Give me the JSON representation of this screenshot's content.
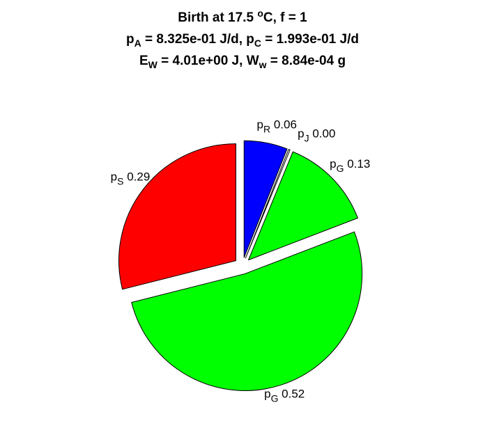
{
  "title": {
    "line1": {
      "pre": "Birth at 17.5 ",
      "sup": "o",
      "post": "C, f = 1"
    },
    "line2": {
      "a_sym": "p",
      "a_sub": "A",
      "a_val": " = 8.325e-01 J/d, ",
      "c_sym": "p",
      "c_sub": "C",
      "c_val": " = 1.993e-01 J/d"
    },
    "line3": {
      "e_sym": "E",
      "e_sub": "W",
      "e_val": " = 4.01e+00 J, ",
      "w_sym": "W",
      "w_sub": "w",
      "w_val": " = 8.84e-04 g"
    }
  },
  "chart_data": {
    "type": "pie",
    "slices": [
      {
        "symbol": "p",
        "sub": "R",
        "value_label": "0.06",
        "value": 0.06,
        "color": "#0000FF"
      },
      {
        "symbol": "p",
        "sub": "J",
        "value_label": "0.00",
        "value": 0.002,
        "color": "#FFFFFF"
      },
      {
        "symbol": "p",
        "sub": "G",
        "value_label": "0.13",
        "value": 0.13,
        "color": "#00FF00"
      },
      {
        "symbol": "p",
        "sub": "G",
        "value_label": "0.52",
        "value": 0.52,
        "color": "#00FF00"
      },
      {
        "symbol": "p",
        "sub": "S",
        "value_label": "0.29",
        "value": 0.29,
        "color": "#FF0000"
      }
    ],
    "start": "12 o'clock",
    "direction": "clockwise",
    "exploded": true
  }
}
